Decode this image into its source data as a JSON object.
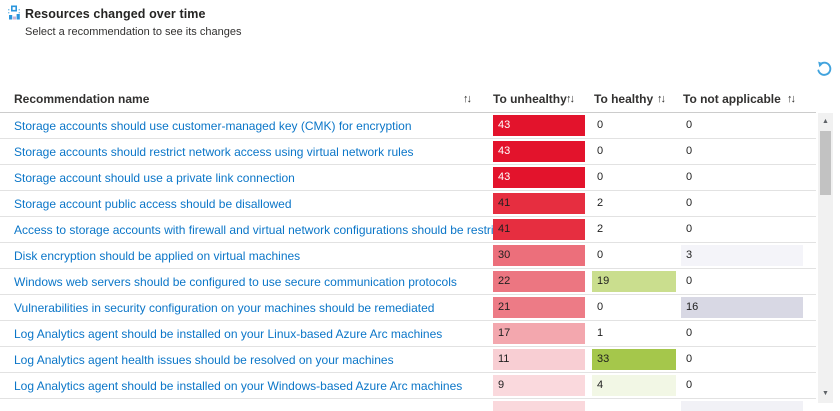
{
  "widget": {
    "title": "Resources changed over time",
    "subtitle": "Select a recommendation to see its changes"
  },
  "icons": {
    "header_icon": "resources-changed-icon",
    "undo_icon": "undo-icon",
    "sort_glyph": "↑↓",
    "scroll_up_glyph": "▲",
    "scroll_down_glyph": "▼"
  },
  "colors": {
    "link_blue": "#0b76c8",
    "header_text": "#323130",
    "accent_blue": "#41a3dd",
    "unhealthy_max_red": "#e3132c",
    "healthy_green": "#a5c74b",
    "not_applicable_gray": "#d8d8e4"
  },
  "table": {
    "columns": [
      "Recommendation name",
      "To unhealthy",
      "To healthy",
      "To not applicable"
    ],
    "rows": [
      {
        "name": "Storage accounts should use customer-managed key (CMK) for encryption",
        "to_unhealthy": {
          "value": "43",
          "bg": "#e3132c",
          "fg": "#ffffff"
        },
        "to_healthy": {
          "value": "0"
        },
        "to_not_applicable": {
          "value": "0"
        }
      },
      {
        "name": "Storage accounts should restrict network access using virtual network rules",
        "to_unhealthy": {
          "value": "43",
          "bg": "#e3132c",
          "fg": "#ffffff"
        },
        "to_healthy": {
          "value": "0"
        },
        "to_not_applicable": {
          "value": "0"
        }
      },
      {
        "name": "Storage account should use a private link connection",
        "to_unhealthy": {
          "value": "43",
          "bg": "#e3132c",
          "fg": "#ffffff"
        },
        "to_healthy": {
          "value": "0"
        },
        "to_not_applicable": {
          "value": "0"
        }
      },
      {
        "name": "Storage account public access should be disallowed",
        "to_unhealthy": {
          "value": "41",
          "bg": "#e62e40",
          "fg": "#1f1f1f"
        },
        "to_healthy": {
          "value": "2"
        },
        "to_not_applicable": {
          "value": "0"
        }
      },
      {
        "name": "Access to storage accounts with firewall and virtual network configurations should be restricted",
        "to_unhealthy": {
          "value": "41",
          "bg": "#e62e40",
          "fg": "#1f1f1f"
        },
        "to_healthy": {
          "value": "2"
        },
        "to_not_applicable": {
          "value": "0"
        }
      },
      {
        "name": "Disk encryption should be applied on virtual machines",
        "to_unhealthy": {
          "value": "30",
          "bg": "#ec6f7b",
          "fg": "#1f1f1f"
        },
        "to_healthy": {
          "value": "0"
        },
        "to_not_applicable": {
          "value": "3",
          "bg": "#f4f4f9",
          "fg": "#1f1f1f"
        }
      },
      {
        "name": "Windows web servers should be configured to use secure communication protocols",
        "to_unhealthy": {
          "value": "22",
          "bg": "#ec7681",
          "fg": "#1f1f1f"
        },
        "to_healthy": {
          "value": "19",
          "bg": "#cade8e",
          "fg": "#1f1f1f"
        },
        "to_not_applicable": {
          "value": "0"
        }
      },
      {
        "name": "Vulnerabilities in security configuration on your machines should be remediated",
        "to_unhealthy": {
          "value": "21",
          "bg": "#ed7b86",
          "fg": "#1f1f1f"
        },
        "to_healthy": {
          "value": "0"
        },
        "to_not_applicable": {
          "value": "16",
          "bg": "#d8d8e4",
          "fg": "#1f1f1f"
        }
      },
      {
        "name": "Log Analytics agent should be installed on your Linux-based Azure Arc machines",
        "to_unhealthy": {
          "value": "17",
          "bg": "#f3a7ae",
          "fg": "#1f1f1f"
        },
        "to_healthy": {
          "value": "1"
        },
        "to_not_applicable": {
          "value": "0"
        }
      },
      {
        "name": "Log Analytics agent health issues should be resolved on your machines",
        "to_unhealthy": {
          "value": "11",
          "bg": "#f8ced3",
          "fg": "#1f1f1f"
        },
        "to_healthy": {
          "value": "33",
          "bg": "#a5c74b",
          "fg": "#1f1f1f"
        },
        "to_not_applicable": {
          "value": "0"
        }
      },
      {
        "name": "Log Analytics agent should be installed on your Windows-based Azure Arc machines",
        "to_unhealthy": {
          "value": "9",
          "bg": "#fad9dd",
          "fg": "#1f1f1f"
        },
        "to_healthy": {
          "value": "4",
          "bg": "#f2f7e5",
          "fg": "#1f1f1f"
        },
        "to_not_applicable": {
          "value": "0"
        }
      },
      {
        "name": "",
        "partial": true,
        "to_unhealthy": {
          "value": "",
          "bg": "#fad8dc"
        },
        "to_healthy": {
          "value": ""
        },
        "to_not_applicable": {
          "value": "",
          "bg": "#f1f1f6"
        }
      }
    ]
  }
}
